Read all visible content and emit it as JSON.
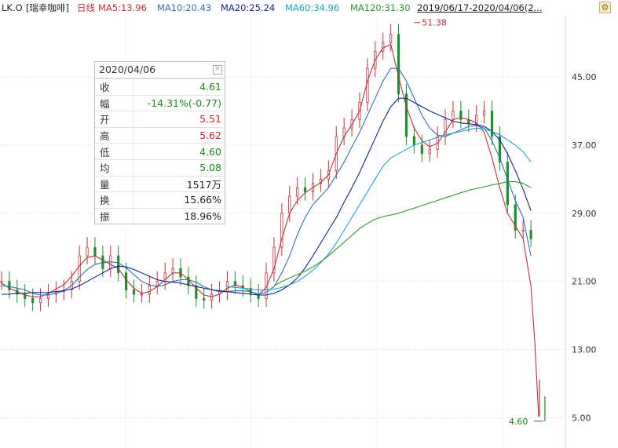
{
  "header": {
    "symbol": "LK.O",
    "name": "[瑞幸咖啡]",
    "period": "日线",
    "ma_labels": [
      {
        "text": "MA5:13.96",
        "color": "#c0313c"
      },
      {
        "text": "MA10:20.43",
        "color": "#2f6fb0"
      },
      {
        "text": "MA20:25.24",
        "color": "#15238a"
      },
      {
        "text": "MA60:34.96",
        "color": "#1aa7c2"
      },
      {
        "text": "MA120:31.30",
        "color": "#2a9a2a"
      }
    ],
    "date_range": "2019/06/17-2020/04/06(2..."
  },
  "info_panel": {
    "date": "2020/04/06",
    "rows": [
      {
        "k": "收",
        "v": "4.61",
        "color": "#1a8a1a"
      },
      {
        "k": "幅",
        "v": "-14.31%(-0.77)",
        "color": "#1a8a1a"
      },
      {
        "k": "开",
        "v": "5.51",
        "color": "#d0202a"
      },
      {
        "k": "高",
        "v": "5.62",
        "color": "#d0202a"
      },
      {
        "k": "低",
        "v": "4.60",
        "color": "#1a8a1a"
      },
      {
        "k": "均",
        "v": "5.08",
        "color": "#1a8a1a"
      },
      {
        "k": "量",
        "v": "1517万",
        "color": "#222222"
      },
      {
        "k": "换",
        "v": "15.66%",
        "color": "#222222"
      },
      {
        "k": "振",
        "v": "18.96%",
        "color": "#222222"
      }
    ]
  },
  "chart_data": {
    "type": "line",
    "title": "",
    "xlabel": "",
    "ylabel": "",
    "ylim": [
      2,
      52
    ],
    "y_ticks": [
      "45.00",
      "37.00",
      "29.00",
      "21.00",
      "13.00",
      "5.00"
    ],
    "y_tick_values": [
      45,
      37,
      29,
      21,
      13,
      5
    ],
    "annotations": [
      {
        "text": "51.38",
        "x": 106,
        "y": 51.38,
        "color": "#c0313c"
      },
      {
        "text": "4.60",
        "x": 135,
        "y": 4.6,
        "color": "#1a8a1a"
      }
    ],
    "x": [
      0,
      2,
      4,
      6,
      8,
      10,
      12,
      14,
      16,
      18,
      20,
      22,
      24,
      26,
      28,
      30,
      32,
      34,
      36,
      38,
      40,
      42,
      44,
      46,
      48,
      50,
      52,
      54,
      56,
      58,
      60,
      62,
      64,
      66,
      68,
      70,
      72,
      74,
      76,
      78,
      80,
      82,
      84,
      86,
      88,
      90,
      92,
      94,
      96,
      98,
      100,
      102,
      104,
      106,
      108,
      110,
      112,
      114,
      116,
      118,
      120,
      122,
      124,
      126,
      128,
      130,
      132,
      134,
      136
    ],
    "close": [
      21,
      20,
      19.5,
      19,
      18.5,
      19,
      19.5,
      19.8,
      20,
      21,
      24,
      25,
      24,
      22.5,
      24,
      22,
      20,
      19.5,
      19.5,
      20.5,
      21,
      22,
      22.5,
      21.5,
      20.5,
      19,
      18.8,
      19.5,
      19.8,
      21,
      20.5,
      20.2,
      19.5,
      19,
      22,
      25,
      29,
      31,
      32,
      31.5,
      32.5,
      33,
      34,
      38,
      39,
      40,
      42,
      46,
      48,
      49,
      50,
      43,
      38,
      37,
      36,
      36.5,
      38,
      40,
      41,
      40,
      39.5,
      40.5,
      41,
      38,
      35,
      30,
      27,
      27,
      26
    ],
    "series": [
      {
        "name": "MA5",
        "color": "#c0313c",
        "values": [
          20.8,
          20.2,
          19.8,
          19.4,
          19.2,
          19.2,
          19.6,
          20.1,
          20.6,
          21.6,
          22.8,
          23.8,
          24,
          23.5,
          23,
          22.5,
          21.2,
          20.2,
          19.6,
          19.8,
          20.4,
          21.2,
          22,
          22,
          21.2,
          20.2,
          19.4,
          19.2,
          19.5,
          20.2,
          20.6,
          20.3,
          19.8,
          19.4,
          20.3,
          22.5,
          26,
          29,
          30.5,
          31.4,
          32,
          32.6,
          33.5,
          36,
          38,
          39.4,
          41,
          44.5,
          47,
          48.4,
          48.8,
          45,
          41.5,
          39,
          37.5,
          36.8,
          37.2,
          38.5,
          40,
          40.2,
          40,
          39.6,
          38.5,
          35.5,
          32,
          29,
          27.5,
          26,
          20.5
        ]
      },
      {
        "name": "MA10",
        "color": "#2f6fb0",
        "values": [
          20.5,
          20.4,
          20.2,
          20,
          19.6,
          19.4,
          19.4,
          19.6,
          19.9,
          20.5,
          21.5,
          22.4,
          23,
          23.2,
          23.3,
          23.2,
          22.6,
          21.8,
          21,
          20.6,
          20.4,
          20.6,
          21,
          21.2,
          21.2,
          20.9,
          20.4,
          20,
          19.8,
          19.8,
          19.9,
          19.9,
          19.8,
          19.5,
          19.7,
          20.4,
          22,
          24,
          26.5,
          28.5,
          30,
          31,
          32,
          33.5,
          35,
          36.8,
          38.5,
          40.5,
          42.5,
          44.5,
          46,
          46,
          44.5,
          42.5,
          40.5,
          39,
          38.2,
          38,
          38.4,
          38.8,
          39.2,
          39.3,
          39,
          37.5,
          35.5,
          33,
          30.5,
          28.5,
          24
        ]
      },
      {
        "name": "MA20",
        "color": "#15238a",
        "values": [
          19.5,
          19.5,
          19.6,
          19.6,
          19.7,
          19.7,
          19.7,
          19.8,
          19.9,
          20.1,
          20.5,
          21,
          21.5,
          22,
          22.5,
          22.8,
          22.7,
          22.4,
          22,
          21.6,
          21.2,
          21,
          20.9,
          20.8,
          20.6,
          20.4,
          20.2,
          20,
          19.9,
          19.8,
          19.7,
          19.6,
          19.5,
          19.4,
          19.4,
          19.6,
          20,
          20.6,
          21.4,
          22.6,
          24,
          25.5,
          27,
          28.5,
          30.3,
          32,
          33.8,
          35.8,
          37.8,
          39.8,
          41.5,
          42.5,
          42.5,
          42,
          41.5,
          41,
          40.6,
          40.2,
          39.8,
          39.6,
          39.5,
          39.4,
          39.2,
          38.6,
          37.6,
          36,
          34,
          31.8,
          29.3
        ]
      },
      {
        "name": "MA60",
        "color": "#1aa7c2",
        "values": [
          null,
          null,
          null,
          null,
          null,
          null,
          null,
          null,
          null,
          null,
          null,
          null,
          null,
          null,
          null,
          null,
          null,
          null,
          null,
          null,
          null,
          null,
          null,
          null,
          null,
          null,
          null,
          null,
          null,
          20.4,
          20.3,
          20.2,
          20.1,
          20,
          20,
          20.1,
          20.3,
          20.6,
          21,
          21.6,
          22.3,
          23.2,
          24.2,
          25.5,
          27,
          28.5,
          30,
          31.5,
          33,
          34.5,
          35.5,
          36,
          36.5,
          37,
          37.3,
          37.6,
          37.9,
          38.2,
          38.4,
          38.6,
          38.8,
          39,
          38.9,
          38.6,
          38.2,
          37.6,
          37,
          36.2,
          35
        ]
      },
      {
        "name": "MA120",
        "color": "#2a9a2a",
        "values": [
          null,
          null,
          null,
          null,
          null,
          null,
          null,
          null,
          null,
          null,
          null,
          null,
          null,
          null,
          null,
          null,
          null,
          null,
          null,
          null,
          null,
          null,
          null,
          null,
          null,
          null,
          null,
          null,
          null,
          null,
          null,
          null,
          null,
          null,
          null,
          20.5,
          21,
          21.4,
          21.8,
          22.2,
          22.7,
          23.3,
          24,
          24.8,
          25.6,
          26.4,
          27.2,
          27.8,
          28.3,
          28.6,
          28.8,
          29,
          29.3,
          29.6,
          29.9,
          30.2,
          30.5,
          30.8,
          31.1,
          31.4,
          31.7,
          31.9,
          32.1,
          32.3,
          32.5,
          32.7,
          32.7,
          32.5,
          32
        ]
      }
    ],
    "tail": {
      "x": [
        136,
        137,
        138
      ],
      "values": [
        20.5,
        13.96,
        5.08
      ]
    }
  }
}
